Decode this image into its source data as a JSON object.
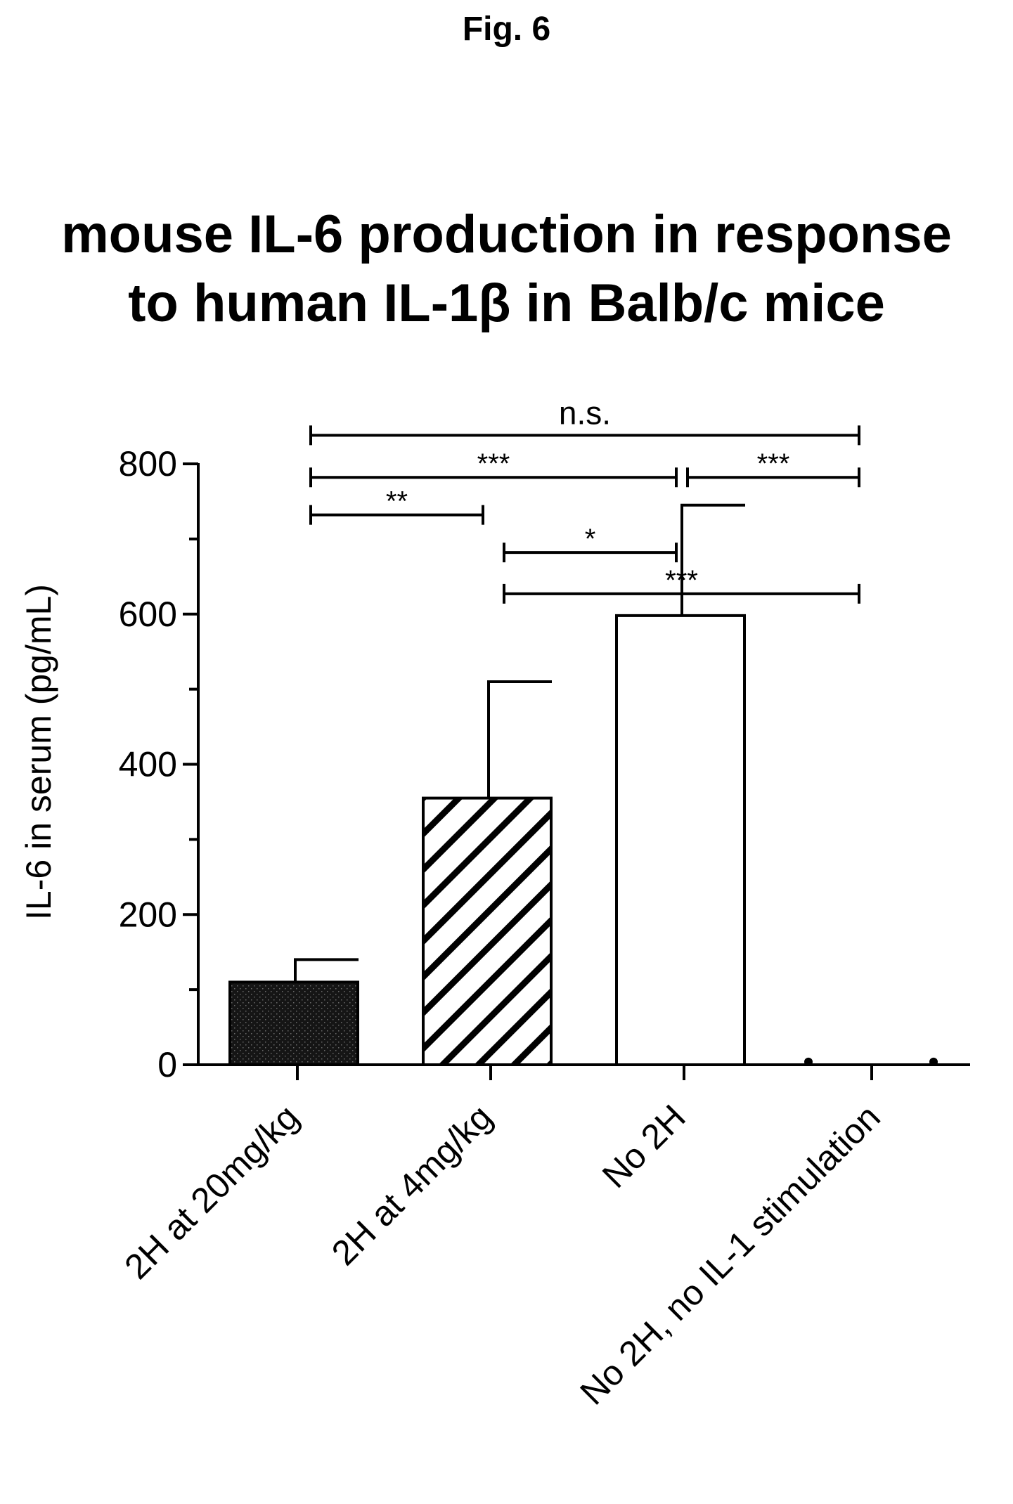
{
  "figure_label": "Fig. 6",
  "chart_data": {
    "type": "bar",
    "title_lines": [
      "mouse IL-6 production in response",
      "to human IL-1β in Balb/c mice"
    ],
    "xlabel": "",
    "ylabel": "IL-6 in serum (pg/mL)",
    "ylim": [
      0,
      800
    ],
    "yticks": [
      0,
      200,
      400,
      600,
      800
    ],
    "categories": [
      "2H at 20mg/kg",
      "2H at 4mg/kg",
      "No 2H",
      "No 2H, no IL-1 stimulation"
    ],
    "values": [
      110,
      355,
      598,
      2
    ],
    "error_upper": [
      140,
      510,
      745,
      null
    ],
    "fills": [
      "stipple-dark",
      "diagonal-hatch",
      "white",
      "none"
    ],
    "significance": [
      {
        "from": 0,
        "to": 3,
        "label": "n.s.",
        "level": 838
      },
      {
        "from": 0,
        "to": 2,
        "label": "***",
        "level": 782
      },
      {
        "from": 2,
        "to": 3,
        "label": "***",
        "level": 782
      },
      {
        "from": 0,
        "to": 1,
        "label": "**",
        "level": 732
      },
      {
        "from": 1,
        "to": 2,
        "label": "*",
        "level": 682
      },
      {
        "from": 1,
        "to": 3,
        "label": "***",
        "level": 627
      }
    ]
  }
}
